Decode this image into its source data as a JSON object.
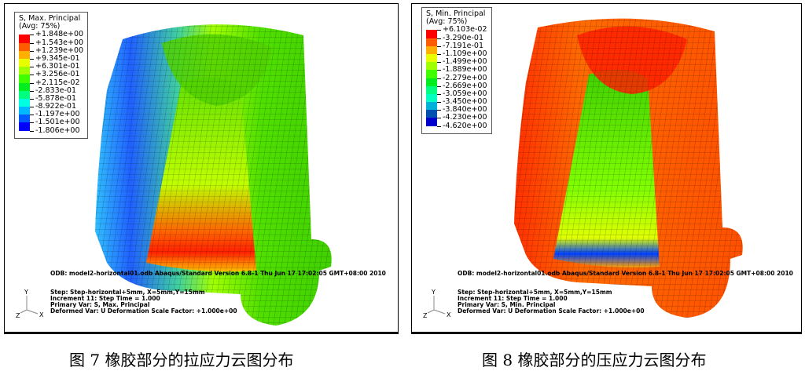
{
  "figures": [
    {
      "legend": {
        "title": "S, Max. Principal",
        "subtitle": "(Avg: 75%)",
        "values": [
          "+1.848e+00",
          "+1.543e+00",
          "+1.239e+00",
          "+9.345e-01",
          "+6.301e-01",
          "+3.256e-01",
          "+2.115e-02",
          "-2.833e-01",
          "-5.878e-01",
          "-8.922e-01",
          "-1.197e+00",
          "-1.501e+00",
          "-1.806e+00"
        ],
        "colors": [
          "#ff0000",
          "#ff5c00",
          "#ffb000",
          "#e8ff00",
          "#a0ff00",
          "#40ff00",
          "#00ee20",
          "#00ff80",
          "#00ffe0",
          "#00b8ff",
          "#005cff",
          "#0000ff"
        ]
      },
      "odb_line": "ODB: model2-horizontal01.odb    Abaqus/Standard Version 6.8-1    Thu Jun 17 17:02:05 GMT+08:00 2010",
      "step_lines": [
        "Step: Step-horizontal+5mm, X=5mm,Y=15mm",
        "Increment     11: Step Time =    1.000",
        "Primary Var: S, Max. Principal",
        "Deformed Var: U   Deformation Scale Factor: +1.000e+00"
      ],
      "axes": {
        "y": "Y",
        "z": "Z",
        "x": "X"
      },
      "caption": "图 7 橡胶部分的拉应力云图分布",
      "dominant_colors": [
        "#30e000",
        "#80ff00",
        "#2060ff",
        "#ff2000"
      ]
    },
    {
      "legend": {
        "title": "S, Min. Principal",
        "subtitle": "(Avg: 75%)",
        "values": [
          "+6.103e-02",
          "-3.290e-01",
          "-7.191e-01",
          "-1.109e+00",
          "-1.499e+00",
          "-1.889e+00",
          "-2.279e+00",
          "-2.669e+00",
          "-3.059e+00",
          "-3.450e+00",
          "-3.840e+00",
          "-4.230e+00",
          "-4.620e+00"
        ],
        "colors": [
          "#ff0000",
          "#ff5c00",
          "#ffb000",
          "#e8ff00",
          "#a0ff00",
          "#40ff00",
          "#00ee20",
          "#00ff80",
          "#00ffc0",
          "#00b0d8",
          "#0050b0",
          "#0000cc"
        ]
      },
      "odb_line": "ODB: model2-horizontal01.odb    Abaqus/Standard Version 6.8-1    Thu Jun 17 17:02:05 GMT+08:00 2010",
      "step_lines": [
        "Step: Step-horizontal+5mm, X=5mm,Y=15mm",
        "Increment     11: Step Time =    1.000",
        "Primary Var: S, Min. Principal",
        "Deformed Var: U   Deformation Scale Factor: +1.000e+00"
      ],
      "axes": {
        "y": "Y",
        "z": "Z",
        "x": "X"
      },
      "caption": "图 8 橡胶部分的压应力云图分布",
      "dominant_colors": [
        "#ff2a00",
        "#ff6a00",
        "#60e000",
        "#0040ff"
      ]
    }
  ]
}
